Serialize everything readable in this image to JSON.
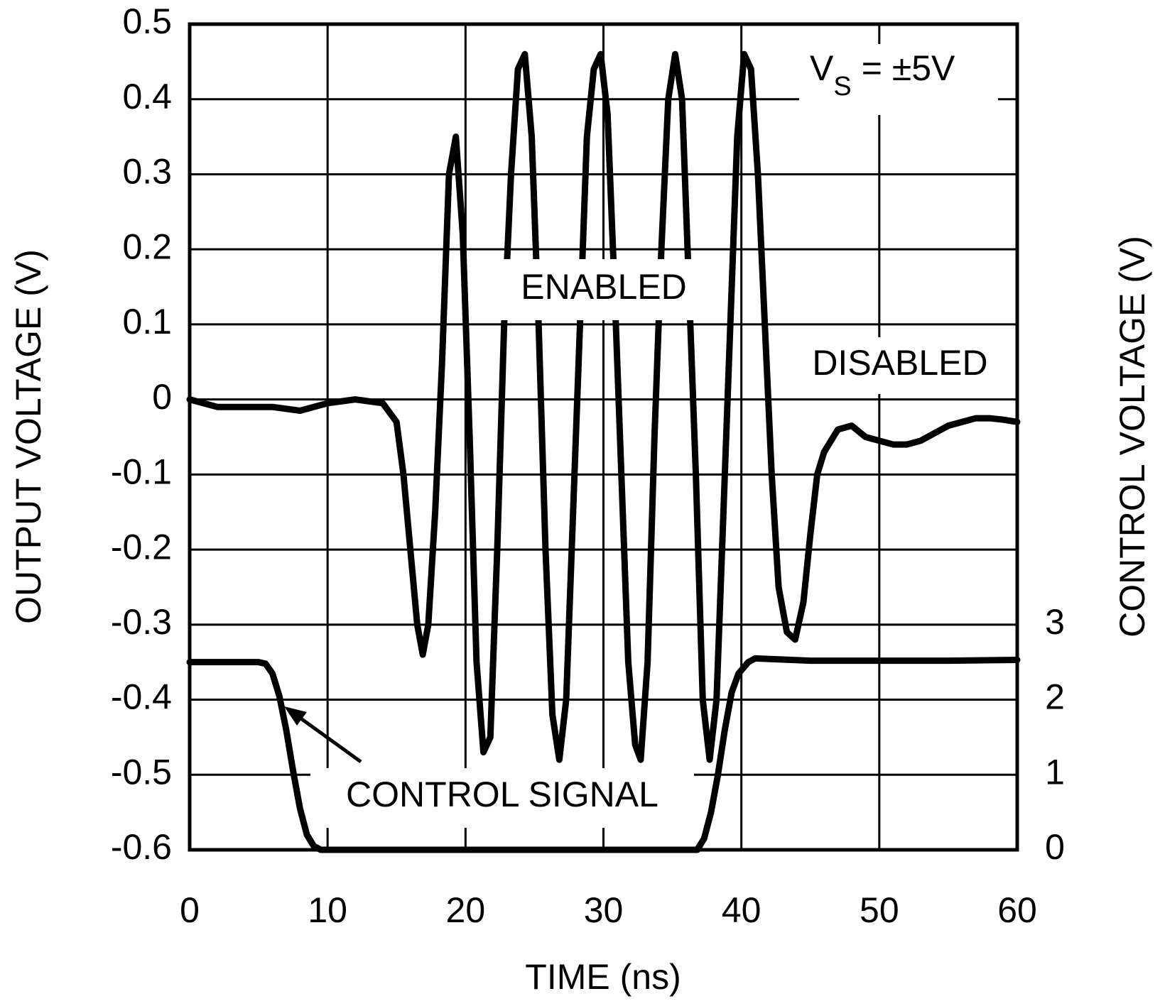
{
  "chart_data": {
    "type": "line",
    "x_label": "TIME (ns)",
    "y_label": "OUTPUT VOLTAGE (V)",
    "y2_label": "CONTROL VOLTAGE (V)",
    "annotations": [
      "ENABLED",
      "DISABLED",
      "CONTROL SIGNAL"
    ],
    "supply_label": {
      "base": "V",
      "sub": "S",
      "rest": "= ±5V"
    },
    "xlim": [
      0,
      60
    ],
    "xticks": [
      0,
      10,
      20,
      30,
      40,
      50,
      60
    ],
    "ylim": [
      -0.6,
      0.5
    ],
    "yticks": [
      -0.6,
      -0.5,
      -0.4,
      -0.3,
      -0.2,
      -0.1,
      0,
      0.1,
      0.2,
      0.3,
      0.4,
      0.5
    ],
    "y2lim": [
      0,
      11
    ],
    "y2ticks": [
      0,
      1,
      2,
      3
    ],
    "grid": true,
    "series": [
      {
        "color": "#000000",
        "x": [
          0,
          2,
          4,
          6,
          8,
          10,
          12,
          14,
          15,
          15.5,
          16,
          16.5,
          16.9,
          17.3,
          17.8,
          18.3,
          18.8,
          19.3,
          19.8,
          20.3,
          20.8,
          21.3,
          21.8,
          22.3,
          22.8,
          23.3,
          23.8,
          24.3,
          24.8,
          25.3,
          25.8,
          26.3,
          26.8,
          27.3,
          27.8,
          28.3,
          28.8,
          29.3,
          29.8,
          30.3,
          30.8,
          31.3,
          31.8,
          32.3,
          32.7,
          33.2,
          33.7,
          34.2,
          34.7,
          35.2,
          35.7,
          36.2,
          36.7,
          37.2,
          37.7,
          38.2,
          38.7,
          39.2,
          39.7,
          40.2,
          40.7,
          41.2,
          41.7,
          42.2,
          42.7,
          43.3,
          43.9,
          44.5,
          45,
          45.5,
          46,
          47,
          48,
          49,
          50,
          51,
          52,
          53,
          54,
          55,
          56,
          57,
          58,
          59,
          60
        ],
        "values": [
          0,
          -0.01,
          -0.01,
          -0.01,
          -0.015,
          -0.005,
          0,
          -0.005,
          -0.03,
          -0.1,
          -0.2,
          -0.3,
          -0.34,
          -0.3,
          -0.15,
          0.05,
          0.3,
          0.35,
          0.22,
          -0.05,
          -0.35,
          -0.47,
          -0.45,
          -0.2,
          0.1,
          0.3,
          0.44,
          0.46,
          0.35,
          0.1,
          -0.2,
          -0.42,
          -0.48,
          -0.4,
          -0.15,
          0.1,
          0.35,
          0.44,
          0.46,
          0.38,
          0.15,
          -0.1,
          -0.35,
          -0.46,
          -0.48,
          -0.35,
          -0.05,
          0.2,
          0.4,
          0.46,
          0.4,
          0.15,
          -0.1,
          -0.4,
          -0.48,
          -0.4,
          -0.15,
          0.1,
          0.35,
          0.46,
          0.44,
          0.3,
          0.1,
          -0.1,
          -0.25,
          -0.31,
          -0.32,
          -0.27,
          -0.18,
          -0.1,
          -0.07,
          -0.04,
          -0.035,
          -0.05,
          -0.055,
          -0.06,
          -0.06,
          -0.055,
          -0.045,
          -0.035,
          -0.03,
          -0.025,
          -0.025,
          -0.027,
          -0.03
        ]
      },
      {
        "color": "#000000",
        "axis": "y2",
        "x": [
          0,
          5,
          5.5,
          6,
          6.5,
          7,
          7.5,
          8,
          8.5,
          9,
          9.5,
          20,
          30,
          36.8,
          37.3,
          37.8,
          38.3,
          38.8,
          39.3,
          39.8,
          40.5,
          41,
          45,
          50,
          55,
          60
        ],
        "values": [
          2.5,
          2.5,
          2.48,
          2.35,
          2.05,
          1.6,
          1.05,
          0.55,
          0.2,
          0.05,
          0,
          0,
          0,
          0,
          0.15,
          0.5,
          1.0,
          1.6,
          2.1,
          2.35,
          2.5,
          2.55,
          2.52,
          2.52,
          2.52,
          2.53
        ]
      }
    ]
  }
}
